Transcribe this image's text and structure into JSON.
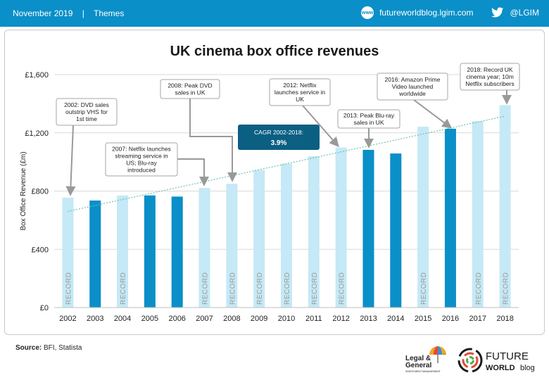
{
  "header": {
    "date": "November 2019",
    "separator": "|",
    "section": "Themes",
    "site_icon": "globe-icon",
    "site": "futureworldblog.lgim.com",
    "twitter_icon": "twitter-bird-icon",
    "handle": "@LGIM"
  },
  "chart_data": {
    "type": "bar",
    "title": "UK cinema box office revenues",
    "ylabel": "Box Office Revenue (£m)",
    "xlabel": "",
    "ylim": [
      0,
      1600
    ],
    "yticks": [
      0,
      400,
      800,
      1200,
      1600
    ],
    "ytick_labels": [
      "£0",
      "£400",
      "£800",
      "£1,200",
      "£1,600"
    ],
    "categories": [
      "2002",
      "2003",
      "2004",
      "2005",
      "2006",
      "2007",
      "2008",
      "2009",
      "2010",
      "2011",
      "2012",
      "2013",
      "2014",
      "2015",
      "2016",
      "2017",
      "2018"
    ],
    "values": [
      755,
      735,
      770,
      770,
      762,
      821,
      850,
      944,
      988,
      1040,
      1099,
      1083,
      1058,
      1242,
      1228,
      1280,
      1390
    ],
    "record_label": "RECORD",
    "record_years": [
      "2002",
      "2004",
      "2007",
      "2008",
      "2009",
      "2010",
      "2011",
      "2012",
      "2015",
      "2017",
      "2018"
    ],
    "trendline": {
      "start": 660,
      "end": 1315
    },
    "colors": {
      "record": "#c5e9f6",
      "other": "#0a8fc8",
      "trend": "#6cc2b0",
      "cagr_box": "#0b5f82",
      "arrow": "#999999"
    },
    "cagr": {
      "label": "CAGR 2002-2018:",
      "value": "3.9%"
    },
    "annotations": [
      {
        "year": "2002",
        "lines": [
          "2002: DVD sales",
          "outstrip VHS for",
          "1st time"
        ]
      },
      {
        "year": "2007",
        "lines": [
          "2007: Netflix launches",
          "streaming service in",
          "US; Blu-ray",
          "introduced"
        ]
      },
      {
        "year": "2008",
        "lines": [
          "2008: Peak DVD",
          "sales in UK"
        ]
      },
      {
        "year": "2012",
        "lines": [
          "2012: Netflix",
          "launches service in",
          "UK"
        ]
      },
      {
        "year": "2013",
        "lines": [
          "2013: Peak Blu-ray",
          "sales in UK"
        ]
      },
      {
        "year": "2016",
        "lines": [
          "2016: Amazon Prime",
          "Video launched",
          "worldwide"
        ]
      },
      {
        "year": "2018",
        "lines": [
          "2018: Record UK",
          "cinema year; 10m",
          "Netflix subscribers"
        ]
      }
    ]
  },
  "footer": {
    "source_label": "Source:",
    "source_text": "BFI, Statista",
    "lg_logo_lines": [
      "Legal &",
      "General",
      "INVESTMENT MANAGEMENT"
    ],
    "fw_logo_lines": [
      "FUTURE",
      "WORLD",
      "blog"
    ]
  }
}
